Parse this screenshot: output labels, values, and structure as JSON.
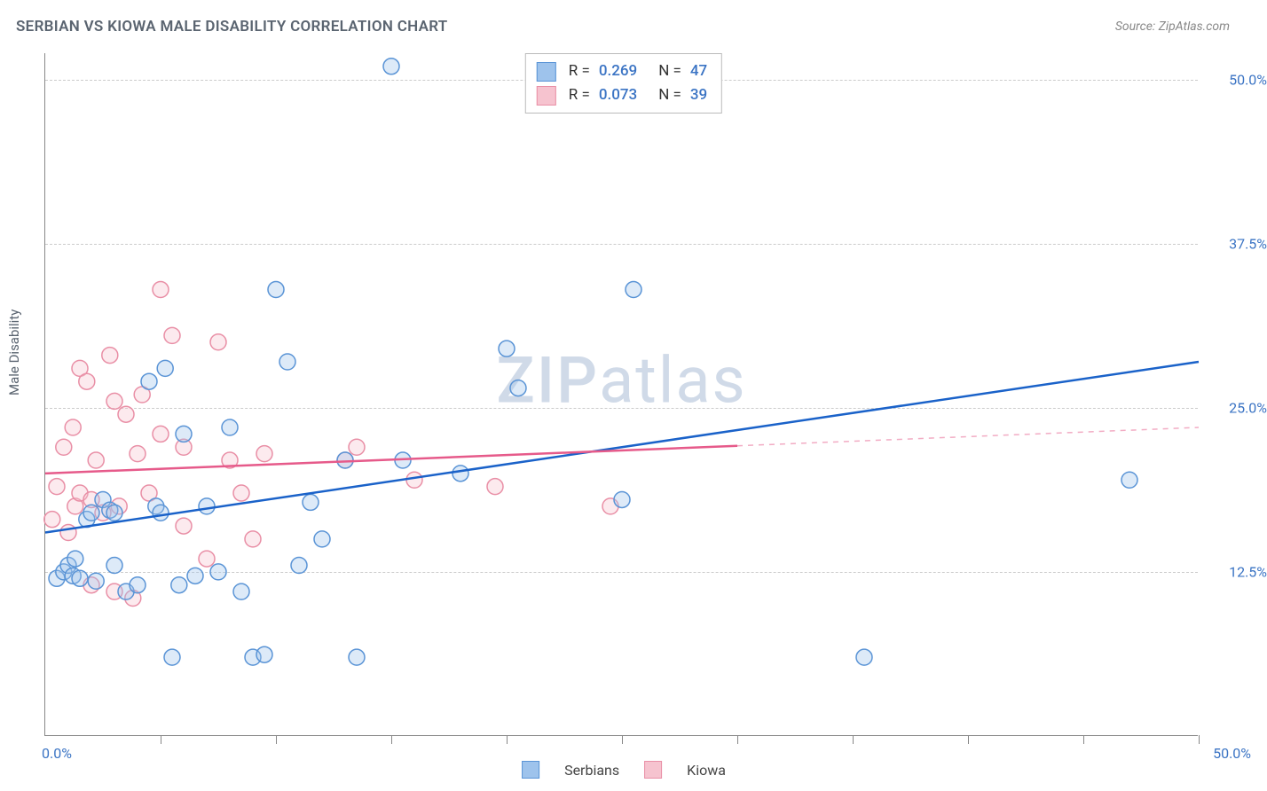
{
  "title": "SERBIAN VS KIOWA MALE DISABILITY CORRELATION CHART",
  "source": "Source: ZipAtlas.com",
  "watermark": "ZIPatlas",
  "chart": {
    "type": "scatter",
    "ylabel": "Male Disability",
    "xlim": [
      0,
      50
    ],
    "ylim": [
      0,
      52
    ],
    "ytick_labels": [
      "12.5%",
      "25.0%",
      "37.5%",
      "50.0%"
    ],
    "ytick_values": [
      12.5,
      25.0,
      37.5,
      50.0
    ],
    "xtick_values": [
      5,
      10,
      15,
      20,
      25,
      30,
      35,
      40,
      45,
      50
    ],
    "x0_label": "0.0%",
    "xmax_label": "50.0%",
    "grid_color": "#cccccc",
    "axis_color": "#888888",
    "background_color": "#ffffff",
    "marker_radius": 9,
    "marker_stroke_width": 1.5,
    "marker_fill_opacity": 0.35,
    "line_width": 2.5,
    "series": [
      {
        "name": "Serbians",
        "color_fill": "#9ec3ec",
        "color_stroke": "#5a94d6",
        "line_color": "#1a62c9",
        "R": "0.269",
        "N": "47",
        "trend": {
          "x1": 0,
          "y1": 15.5,
          "x2": 50,
          "y2": 28.5,
          "dash_from_x": null
        },
        "points": [
          [
            0.5,
            12.0
          ],
          [
            0.8,
            12.5
          ],
          [
            1.0,
            13.0
          ],
          [
            1.2,
            12.2
          ],
          [
            1.3,
            13.5
          ],
          [
            1.5,
            12.0
          ],
          [
            1.8,
            16.5
          ],
          [
            2.0,
            17.0
          ],
          [
            2.2,
            11.8
          ],
          [
            2.5,
            18.0
          ],
          [
            2.8,
            17.2
          ],
          [
            3.0,
            13.0
          ],
          [
            3.0,
            17.0
          ],
          [
            3.5,
            11.0
          ],
          [
            4.0,
            11.5
          ],
          [
            4.5,
            27.0
          ],
          [
            4.8,
            17.5
          ],
          [
            5.0,
            17.0
          ],
          [
            5.2,
            28.0
          ],
          [
            5.5,
            6.0
          ],
          [
            5.8,
            11.5
          ],
          [
            6.0,
            23.0
          ],
          [
            6.5,
            12.2
          ],
          [
            7.0,
            17.5
          ],
          [
            7.5,
            12.5
          ],
          [
            8.0,
            23.5
          ],
          [
            8.5,
            11.0
          ],
          [
            9.0,
            6.0
          ],
          [
            9.5,
            6.2
          ],
          [
            10.0,
            34.0
          ],
          [
            10.5,
            28.5
          ],
          [
            11.0,
            13.0
          ],
          [
            11.5,
            17.8
          ],
          [
            12.0,
            15.0
          ],
          [
            13.0,
            21.0
          ],
          [
            13.5,
            6.0
          ],
          [
            15.0,
            51.0
          ],
          [
            15.5,
            21.0
          ],
          [
            18.0,
            20.0
          ],
          [
            20.0,
            29.5
          ],
          [
            20.5,
            26.5
          ],
          [
            25.0,
            18.0
          ],
          [
            25.5,
            34.0
          ],
          [
            35.5,
            6.0
          ],
          [
            47.0,
            19.5
          ]
        ]
      },
      {
        "name": "Kiowa",
        "color_fill": "#f6c3cf",
        "color_stroke": "#e98fa6",
        "line_color": "#e65a8a",
        "R": "0.073",
        "N": "39",
        "trend": {
          "x1": 0,
          "y1": 20.0,
          "x2": 50,
          "y2": 23.5,
          "dash_from_x": 30
        },
        "points": [
          [
            0.3,
            16.5
          ],
          [
            0.5,
            19.0
          ],
          [
            0.8,
            22.0
          ],
          [
            1.0,
            15.5
          ],
          [
            1.2,
            23.5
          ],
          [
            1.3,
            17.5
          ],
          [
            1.5,
            18.5
          ],
          [
            1.5,
            28.0
          ],
          [
            1.8,
            27.0
          ],
          [
            2.0,
            11.5
          ],
          [
            2.0,
            18.0
          ],
          [
            2.2,
            21.0
          ],
          [
            2.5,
            17.0
          ],
          [
            2.8,
            29.0
          ],
          [
            3.0,
            11.0
          ],
          [
            3.0,
            25.5
          ],
          [
            3.2,
            17.5
          ],
          [
            3.5,
            24.5
          ],
          [
            3.8,
            10.5
          ],
          [
            4.0,
            21.5
          ],
          [
            4.2,
            26.0
          ],
          [
            4.5,
            18.5
          ],
          [
            5.0,
            23.0
          ],
          [
            5.0,
            34.0
          ],
          [
            5.5,
            30.5
          ],
          [
            6.0,
            16.0
          ],
          [
            6.0,
            22.0
          ],
          [
            7.0,
            13.5
          ],
          [
            7.5,
            30.0
          ],
          [
            8.0,
            21.0
          ],
          [
            8.5,
            18.5
          ],
          [
            9.0,
            15.0
          ],
          [
            9.5,
            21.5
          ],
          [
            13.0,
            21.0
          ],
          [
            13.5,
            22.0
          ],
          [
            16.0,
            19.5
          ],
          [
            19.5,
            19.0
          ],
          [
            24.5,
            17.5
          ]
        ]
      }
    ]
  },
  "legend_bottom": {
    "items": [
      "Serbians",
      "Kiowa"
    ]
  }
}
